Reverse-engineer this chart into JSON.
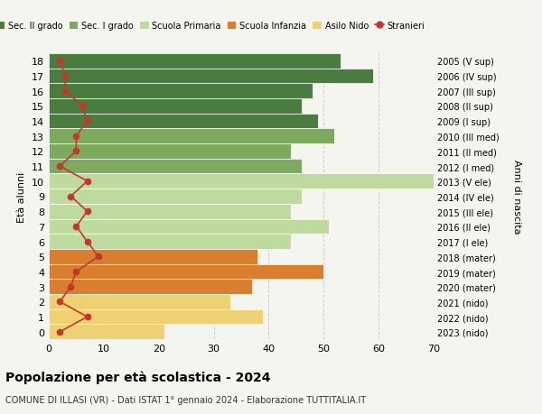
{
  "ages": [
    18,
    17,
    16,
    15,
    14,
    13,
    12,
    11,
    10,
    9,
    8,
    7,
    6,
    5,
    4,
    3,
    2,
    1,
    0
  ],
  "years": [
    "2005 (V sup)",
    "2006 (IV sup)",
    "2007 (III sup)",
    "2008 (II sup)",
    "2009 (I sup)",
    "2010 (III med)",
    "2011 (II med)",
    "2012 (I med)",
    "2013 (V ele)",
    "2014 (IV ele)",
    "2015 (III ele)",
    "2016 (II ele)",
    "2017 (I ele)",
    "2018 (mater)",
    "2019 (mater)",
    "2020 (mater)",
    "2021 (nido)",
    "2022 (nido)",
    "2023 (nido)"
  ],
  "bar_values": [
    53,
    59,
    48,
    46,
    49,
    52,
    44,
    46,
    70,
    46,
    44,
    51,
    44,
    38,
    50,
    37,
    33,
    39,
    21
  ],
  "stranieri": [
    2,
    3,
    3,
    6,
    7,
    5,
    5,
    2,
    7,
    4,
    7,
    5,
    7,
    9,
    5,
    4,
    2,
    7,
    2
  ],
  "bar_colors": [
    "#4a7c3f",
    "#4a7c3f",
    "#4a7c3f",
    "#4a7c3f",
    "#4a7c3f",
    "#7daa5e",
    "#7daa5e",
    "#7daa5e",
    "#bfda9e",
    "#bfda9e",
    "#bfda9e",
    "#bfda9e",
    "#bfda9e",
    "#d97d2e",
    "#d97d2e",
    "#d97d2e",
    "#efd073",
    "#efd073",
    "#efd073"
  ],
  "legend_labels": [
    "Sec. II grado",
    "Sec. I grado",
    "Scuola Primaria",
    "Scuola Infanzia",
    "Asilo Nido",
    "Stranieri"
  ],
  "legend_colors": [
    "#4a7c3f",
    "#7daa5e",
    "#bfda9e",
    "#d97d2e",
    "#efd073",
    "#c0392b"
  ],
  "title": "Popolazione per età scolastica - 2024",
  "subtitle": "COMUNE DI ILLASI (VR) - Dati ISTAT 1° gennaio 2024 - Elaborazione TUTTITALIA.IT",
  "ylabel": "Età alunni",
  "right_ylabel": "Anni di nascita",
  "xlabel_max": 70,
  "stranieri_color": "#c0392b",
  "background_color": "#f5f5f0",
  "grid_color": "#cccccc"
}
